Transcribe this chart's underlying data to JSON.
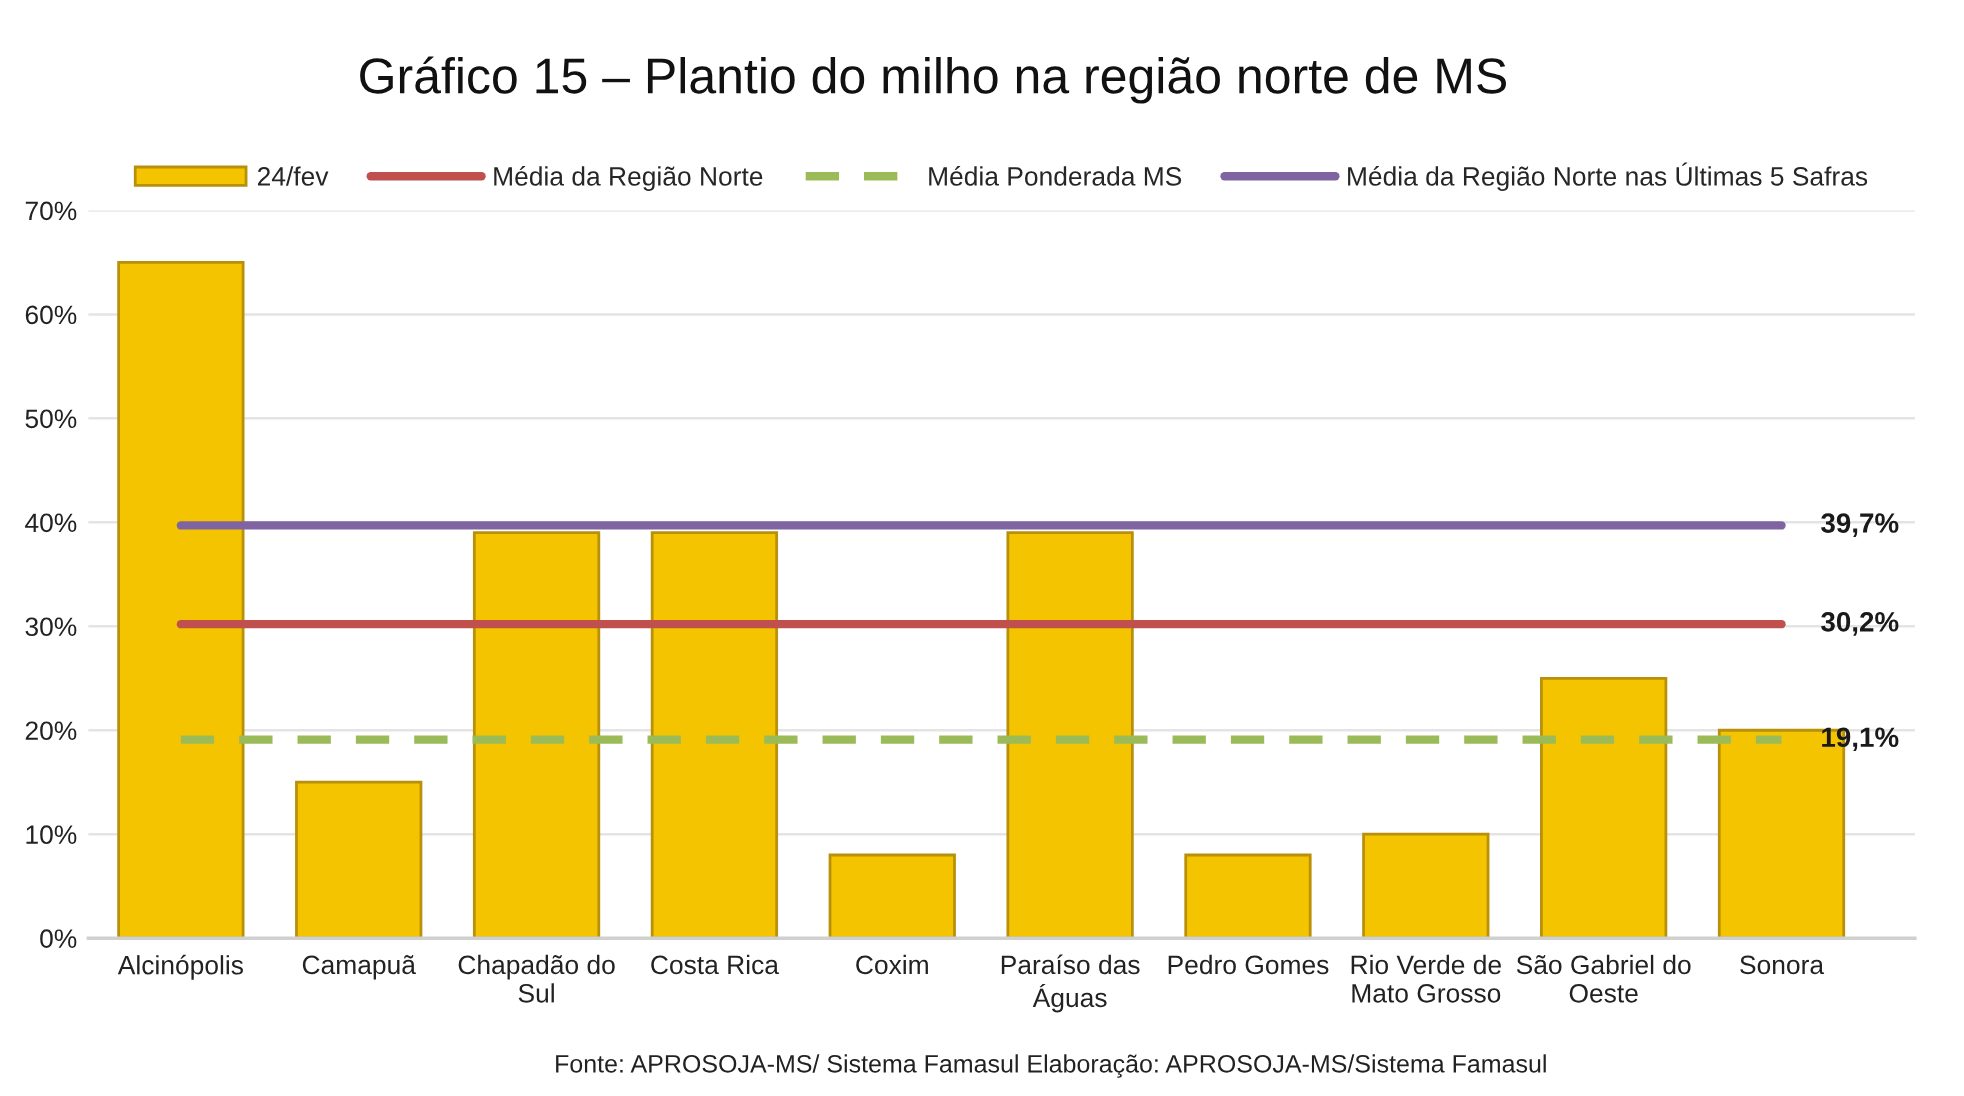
{
  "chart_data": {
    "type": "bar",
    "title": "Gráfico 15 – Plantio do milho na região norte de MS",
    "categories": [
      "Alcinópolis",
      "Camapuã",
      "Chapadão do Sul",
      "Costa Rica",
      "Coxim",
      "Paraíso das Águas",
      "Pedro Gomes",
      "Rio Verde de Mato Grosso",
      "São Gabriel do Oeste",
      "Sonora"
    ],
    "series": [
      {
        "name": "24/fev",
        "color": "#f5c400",
        "values": [
          65,
          15,
          39,
          39,
          8,
          39,
          8,
          10,
          25,
          20
        ]
      },
      {
        "name": "Média da Região Norte",
        "type": "line",
        "color": "#c0504d",
        "line_style": "solid",
        "values": [
          30.2,
          30.2,
          30.2,
          30.2,
          30.2,
          30.2,
          30.2,
          30.2,
          30.2,
          30.2
        ],
        "value_labels": [
          null,
          null,
          null,
          null,
          null,
          null,
          null,
          null,
          null,
          "30,2%"
        ]
      },
      {
        "name": "Média Ponderada MS",
        "type": "line",
        "color": "#9bbb59",
        "line_style": "dashed",
        "values": [
          19.1,
          19.1,
          19.1,
          19.1,
          19.1,
          19.1,
          19.1,
          19.1,
          19.1,
          19.1
        ],
        "value_labels": [
          null,
          null,
          null,
          null,
          null,
          null,
          null,
          null,
          null,
          "19,1%"
        ]
      },
      {
        "name": "Média da Região Norte nas Últimas 5 Safras",
        "type": "line",
        "color": "#8064a2",
        "line_style": "solid",
        "values": [
          39.7,
          39.7,
          39.7,
          39.7,
          39.7,
          39.7,
          39.7,
          39.7,
          39.7,
          39.7
        ],
        "value_labels": [
          null,
          null,
          null,
          null,
          null,
          null,
          null,
          null,
          null,
          "39,7%"
        ]
      }
    ],
    "ylim": [
      0,
      70
    ],
    "yticks": [
      {
        "value": 0,
        "label": "0%"
      },
      {
        "value": 10,
        "label": "10%"
      },
      {
        "value": 20,
        "label": "20%"
      },
      {
        "value": 30,
        "label": "30%"
      },
      {
        "value": 40,
        "label": "40%"
      },
      {
        "value": 50,
        "label": "50%"
      },
      {
        "value": 60,
        "label": "60%"
      },
      {
        "value": 70,
        "label": "70%"
      }
    ],
    "grid": "y",
    "legend": "top",
    "annotations": [
      "Fonte: APROSOJA-MS/ Sistema Famasul Elaboração: APROSOJA-MS/Sistema Famasul"
    ]
  }
}
